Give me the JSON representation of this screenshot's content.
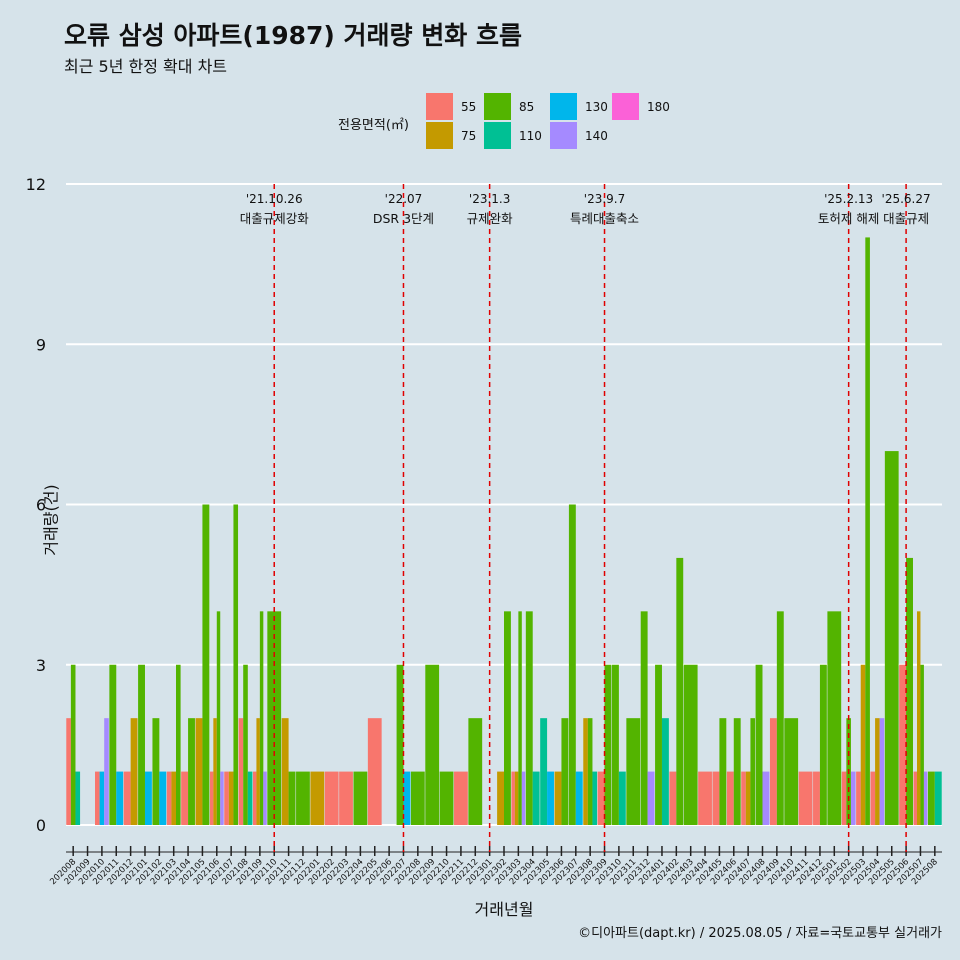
{
  "title": "오류 삼성 아파트(1987) 거래량 변화 흐름",
  "subtitle": "최근 5년 한정 확대 차트",
  "caption": "©디아파트(dapt.kr) / 2025.08.05 / 자료=국토교통부 실거래가",
  "legend": {
    "title": "전용면적(㎡)",
    "items": [
      {
        "label": "55",
        "color": "#f8766d"
      },
      {
        "label": "75",
        "color": "#c49a00"
      },
      {
        "label": "85",
        "color": "#53b400"
      },
      {
        "label": "110",
        "color": "#00c094"
      },
      {
        "label": "130",
        "color": "#00b6eb"
      },
      {
        "label": "140",
        "color": "#a58aff"
      },
      {
        "label": "180",
        "color": "#fb61d7"
      }
    ]
  },
  "chart_data": {
    "type": "bar",
    "xlabel": "거래년월",
    "ylabel": "거래량(건)",
    "ylim": [
      0,
      12
    ],
    "yticks": [
      0,
      3,
      6,
      9,
      12
    ],
    "grid": true,
    "legend_position": "top",
    "categories": [
      "202008",
      "202009",
      "202010",
      "202011",
      "202012",
      "202101",
      "202102",
      "202103",
      "202104",
      "202105",
      "202106",
      "202107",
      "202108",
      "202109",
      "202110",
      "202111",
      "202112",
      "202201",
      "202202",
      "202203",
      "202204",
      "202205",
      "202206",
      "202207",
      "202208",
      "202209",
      "202210",
      "202211",
      "202212",
      "202301",
      "202302",
      "202303",
      "202304",
      "202305",
      "202306",
      "202307",
      "202308",
      "202309",
      "202310",
      "202311",
      "202312",
      "202401",
      "202402",
      "202403",
      "202404",
      "202405",
      "202406",
      "202407",
      "202408",
      "202409",
      "202410",
      "202411",
      "202412",
      "202501",
      "202502",
      "202503",
      "202504",
      "202505",
      "202506",
      "202507",
      "202508"
    ],
    "series": [
      {
        "name": "55",
        "values": [
          2,
          0,
          1,
          0,
          1,
          0,
          0,
          1,
          1,
          0,
          1,
          1,
          2,
          1,
          0,
          0,
          0,
          0,
          1,
          1,
          0,
          2,
          0,
          0,
          0,
          0,
          0,
          1,
          0,
          0,
          0,
          1,
          0,
          0,
          0,
          0,
          0,
          1,
          0,
          0,
          0,
          0,
          1,
          0,
          1,
          1,
          1,
          1,
          0,
          2,
          0,
          1,
          1,
          0,
          1,
          1,
          1,
          0,
          3,
          1,
          0
        ]
      },
      {
        "name": "75",
        "values": [
          0,
          0,
          0,
          0,
          2,
          0,
          0,
          1,
          0,
          2,
          2,
          1,
          0,
          2,
          0,
          2,
          0,
          1,
          0,
          0,
          0,
          0,
          0,
          0,
          0,
          0,
          0,
          0,
          0,
          0,
          1,
          1,
          0,
          0,
          1,
          0,
          2,
          0,
          0,
          0,
          0,
          0,
          0,
          0,
          0,
          0,
          0,
          1,
          0,
          0,
          0,
          0,
          0,
          0,
          0,
          3,
          2,
          0,
          0,
          4,
          0
        ]
      },
      {
        "name": "85",
        "values": [
          3,
          0,
          0,
          3,
          0,
          3,
          2,
          3,
          2,
          6,
          4,
          6,
          3,
          4,
          4,
          1,
          1,
          0,
          0,
          0,
          1,
          0,
          0,
          3,
          1,
          3,
          1,
          0,
          2,
          0,
          4,
          4,
          4,
          0,
          2,
          6,
          2,
          3,
          3,
          2,
          4,
          3,
          5,
          3,
          0,
          2,
          2,
          2,
          3,
          4,
          2,
          0,
          3,
          4,
          2,
          11,
          0,
          7,
          5,
          3,
          1
        ]
      },
      {
        "name": "110",
        "values": [
          1,
          0,
          0,
          0,
          0,
          0,
          0,
          0,
          0,
          0,
          0,
          0,
          1,
          0,
          0,
          0,
          0,
          0,
          0,
          0,
          0,
          0,
          0,
          0,
          0,
          0,
          0,
          0,
          0,
          0,
          0,
          0,
          1,
          2,
          0,
          0,
          1,
          0,
          1,
          0,
          0,
          2,
          0,
          0,
          0,
          0,
          0,
          0,
          0,
          0,
          0,
          0,
          0,
          0,
          0,
          0,
          0,
          0,
          0,
          0,
          1
        ]
      },
      {
        "name": "130",
        "values": [
          0,
          0,
          1,
          1,
          0,
          1,
          1,
          0,
          0,
          0,
          0,
          0,
          0,
          0,
          0,
          0,
          0,
          0,
          0,
          0,
          0,
          0,
          0,
          1,
          0,
          0,
          0,
          0,
          0,
          0,
          0,
          0,
          0,
          1,
          0,
          1,
          0,
          0,
          0,
          0,
          0,
          0,
          0,
          0,
          0,
          0,
          0,
          0,
          0,
          0,
          0,
          0,
          0,
          0,
          0,
          0,
          0,
          0,
          0,
          0,
          0
        ]
      },
      {
        "name": "140",
        "values": [
          0,
          0,
          2,
          0,
          0,
          0,
          0,
          0,
          0,
          0,
          1,
          0,
          0,
          1,
          0,
          0,
          0,
          0,
          0,
          0,
          0,
          0,
          0,
          0,
          0,
          0,
          0,
          0,
          0,
          0,
          0,
          1,
          0,
          0,
          0,
          0,
          0,
          0,
          0,
          0,
          1,
          0,
          0,
          0,
          0,
          0,
          0,
          0,
          1,
          0,
          0,
          0,
          0,
          0,
          1,
          0,
          2,
          0,
          0,
          1,
          0
        ]
      },
      {
        "name": "180",
        "values": [
          0,
          0,
          0,
          0,
          0,
          0,
          0,
          0,
          0,
          0,
          0,
          0,
          0,
          0,
          0,
          0,
          0,
          0,
          0,
          0,
          0,
          0,
          0,
          0,
          0,
          0,
          0,
          0,
          0,
          0,
          0,
          0,
          0,
          0,
          0,
          0,
          0,
          0,
          0,
          0,
          0,
          0,
          0,
          0,
          0,
          0,
          0,
          0,
          0,
          0,
          0,
          0,
          0,
          0,
          0,
          0,
          0,
          0,
          0,
          0,
          0
        ]
      }
    ],
    "annotations": [
      {
        "at": "202110",
        "date": "'21.10.26",
        "text": "대출규제강화"
      },
      {
        "at": "202207",
        "date": "'22.07",
        "text": "DSR 3단계"
      },
      {
        "at": "202301",
        "date": "'23.1.3",
        "text": "규제완화"
      },
      {
        "at": "202309",
        "date": "'23.9.7",
        "text": "특례대출축소"
      },
      {
        "at": "202502",
        "date": "'25.2.13",
        "text": "토허제 해제"
      },
      {
        "at": "202506",
        "date": "'25.6.27",
        "text": "대출규제"
      }
    ]
  }
}
